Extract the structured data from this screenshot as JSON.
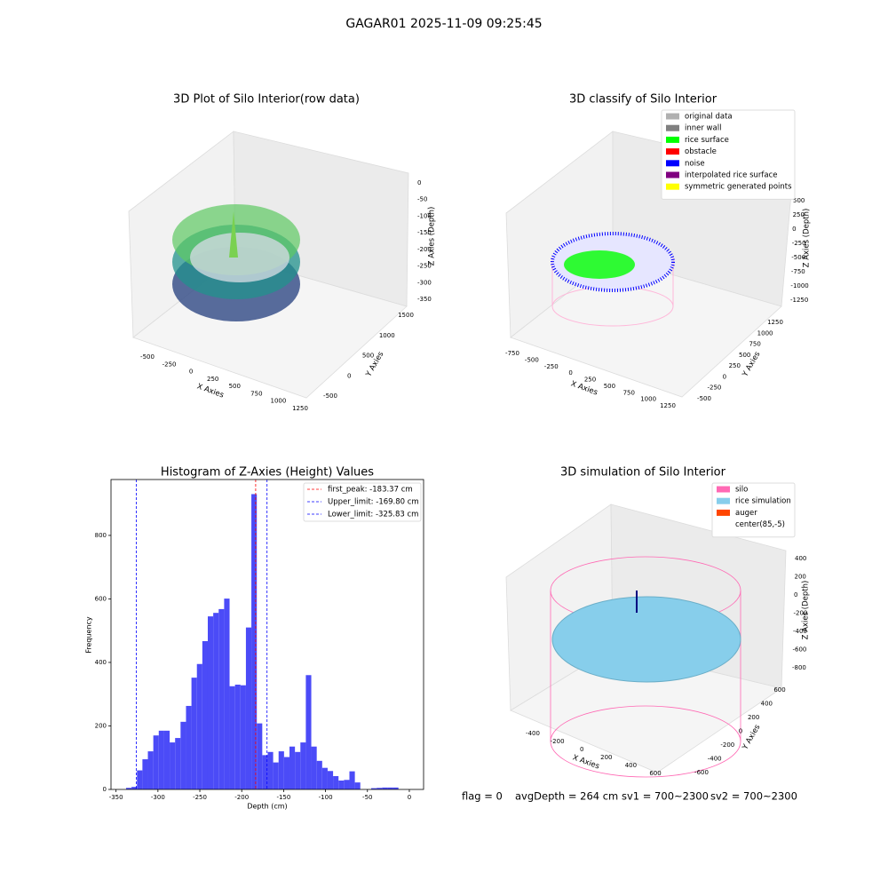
{
  "title": "GAGAR01 2025-11-09 09:25:45",
  "status": [
    "flag = 0",
    "avgDepth = 264 cm",
    "sv1 = 700~2300",
    "sv2 = 700~2300"
  ],
  "chart_data": [
    {
      "type": "scatter3d",
      "title": "3D Plot of Silo Interior(row data)",
      "xlabel": "X Axies",
      "ylabel": "Y Axies",
      "zlabel": "Z Axies (Depth)",
      "xticks": [
        -500,
        -250,
        0,
        250,
        500,
        750,
        1000,
        1250
      ],
      "yticks": [
        -500,
        0,
        500,
        1000,
        1500
      ],
      "zticks": [
        0,
        -50,
        -100,
        -150,
        -200,
        -250,
        -300,
        -350
      ]
    },
    {
      "type": "scatter3d",
      "title": "3D classify of Silo Interior",
      "xlabel": "X Axies",
      "ylabel": "Y Axies",
      "zlabel": "Z Axies (Depth)",
      "xticks": [
        -750,
        -500,
        -250,
        0,
        250,
        500,
        750,
        1000,
        1250
      ],
      "yticks": [
        -500,
        -250,
        0,
        250,
        500,
        750,
        1000,
        1250
      ],
      "zticks": [
        500,
        250,
        0,
        -250,
        -500,
        -750,
        -1000,
        -1250
      ],
      "series": [
        {
          "name": "original data",
          "color": "#b0b0b0"
        },
        {
          "name": "inner wall",
          "color": "#808080"
        },
        {
          "name": "rice surface",
          "color": "#00ff00"
        },
        {
          "name": "obstacle",
          "color": "#ff0000"
        },
        {
          "name": "noise",
          "color": "#0000ff"
        },
        {
          "name": "interpolated rice surface",
          "color": "#800080"
        },
        {
          "name": "symmetric generated points",
          "color": "#ffff00"
        }
      ]
    },
    {
      "type": "histogram",
      "title": "Histogram of Z-Axies (Height) Values",
      "xlabel": "Depth (cm)",
      "ylabel": "Frequency",
      "color": "#4b4bf7",
      "bins": [
        -338,
        -331.5,
        -325,
        -318.5,
        -312,
        -305.5,
        -299,
        -292.5,
        -286,
        -279.5,
        -273,
        -266.5,
        -260,
        -253.5,
        -247,
        -240.5,
        -234,
        -227.5,
        -221,
        -214.5,
        -208,
        -201.5,
        -195,
        -188.5,
        -182,
        -175.5,
        -169,
        -162.5,
        -156,
        -149.5,
        -143,
        -136.5,
        -130,
        -123.5,
        -117,
        -110.5,
        -104,
        -97.5,
        -91,
        -84.5,
        -78,
        -71.5,
        -65,
        -58.5,
        -52,
        -45.5,
        -39,
        -32.5,
        -26,
        -19.5,
        -13
      ],
      "values": [
        5,
        8,
        60,
        95,
        120,
        170,
        185,
        185,
        148,
        162,
        213,
        263,
        352,
        395,
        467,
        545,
        556,
        568,
        601,
        325,
        330,
        328,
        510,
        930,
        208,
        108,
        118,
        85,
        120,
        102,
        135,
        118,
        148,
        360,
        135,
        90,
        68,
        58,
        42,
        28,
        30,
        57,
        22,
        0,
        0,
        4,
        5,
        6,
        6,
        6
      ],
      "lines": [
        {
          "name": "first_peak: -183.37 cm",
          "value": -183.37,
          "color": "#ff0000"
        },
        {
          "name": "Upper_limit: -169.80 cm",
          "value": -169.8,
          "color": "#0000ff"
        },
        {
          "name": "Lower_limit: -325.83 cm",
          "value": -325.83,
          "color": "#0000ff"
        }
      ],
      "xlim": [
        -356,
        17
      ],
      "ylim": [
        0,
        976
      ],
      "xticks": [
        -350,
        -300,
        -250,
        -200,
        -150,
        -100,
        -50,
        0
      ],
      "yticks": [
        0,
        200,
        400,
        600,
        800
      ]
    },
    {
      "type": "surface3d",
      "title": "3D simulation of Silo Interior",
      "xlabel": "X Axies",
      "ylabel": "Y Axies",
      "zlabel": "Z Axies (Depth)",
      "xticks": [
        -400,
        -200,
        0,
        200,
        400,
        600
      ],
      "yticks": [
        -600,
        -400,
        -200,
        0,
        200,
        400,
        600
      ],
      "zticks": [
        400,
        200,
        0,
        -200,
        -400,
        -600,
        -800
      ],
      "series": [
        {
          "name": "silo",
          "color": "#ff69b4"
        },
        {
          "name": "rice simulation",
          "color": "#87ceeb"
        },
        {
          "name": "auger",
          "color": "#ff4500"
        },
        {
          "name": "center(85,-5)",
          "color": "#ffffff"
        }
      ]
    }
  ]
}
